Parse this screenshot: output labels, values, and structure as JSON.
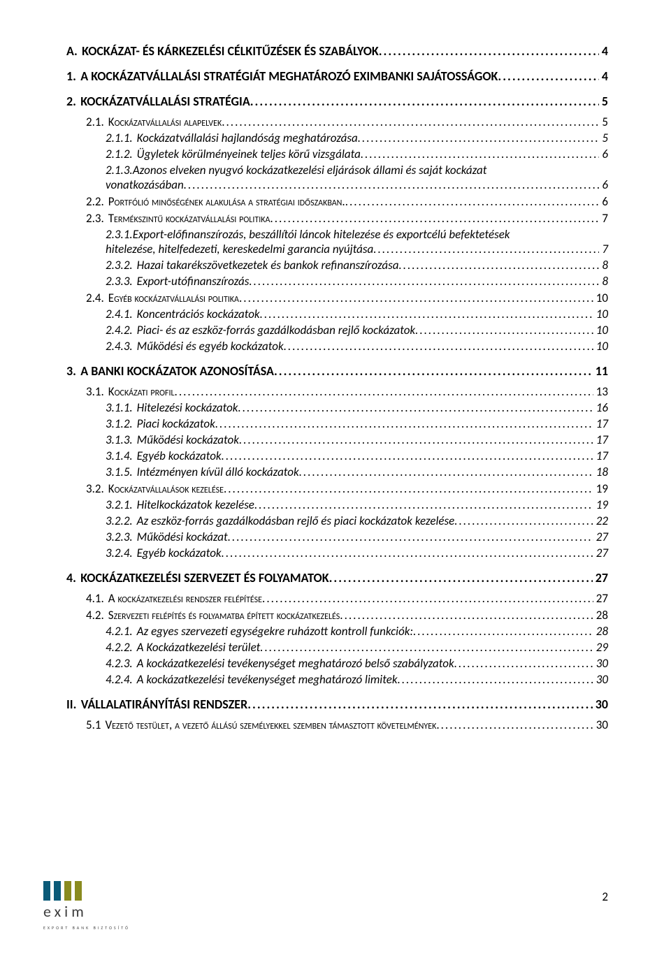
{
  "pageNumber": "2",
  "logo": {
    "word": "exim",
    "tag": "EXPORT   BANK   BIZTOSÍTÓ",
    "bar_colors": [
      "#0a5a78",
      "#0a5a78",
      "#8a8b1f",
      "#8a8b1f"
    ],
    "word_color": "#3c3c3c"
  },
  "toc": [
    {
      "lvl": 0,
      "num": "A.",
      "title": "KOCKÁZAT- ÉS KÁRKEZELÉSI CÉLKITŰZÉSEK ÉS SZABÁLYOK",
      "page": "4"
    },
    {
      "lvl": 0,
      "num": "1.",
      "title": "A KOCKÁZATVÁLLALÁSI STRATÉGIÁT MEGHATÁROZÓ EXIMBANKI SAJÁTOSSÁGOK",
      "page": "4"
    },
    {
      "lvl": 0,
      "num": "2.",
      "title": "KOCKÁZATVÁLLALÁSI STRATÉGIA",
      "page": "5"
    },
    {
      "lvl": 1,
      "num": "2.1.",
      "title": "Kockázatvállalási alapelvek",
      "page": "5"
    },
    {
      "lvl": 2,
      "num": "2.1.1.",
      "title": "Kockázatvállalási hajlandóság meghatározása",
      "page": "5"
    },
    {
      "lvl": 2,
      "num": "2.1.2.",
      "title": "Ügyletek körülményeinek teljes körű vizsgálata",
      "page": "6"
    },
    {
      "lvl": 2,
      "num": "2.1.3.",
      "title_line1": "Azonos elveken nyugvó kockázatkezelési eljárások állami és saját kockázat",
      "title_line2": "vonatkozásában",
      "page": "6",
      "wrap": true
    },
    {
      "lvl": 1,
      "num": "2.2.",
      "title": "Portfólió minőségének alakulása a stratégiai időszakban.",
      "page": "6"
    },
    {
      "lvl": 1,
      "num": "2.3.",
      "title": "Termékszintű kockázatvállalási politika",
      "page": "7"
    },
    {
      "lvl": 2,
      "num": "2.3.1.",
      "title_line1": "Export-előfinanszírozás, beszállítói láncok hitelezése és exportcélú befektetések",
      "title_line2": "hitelezése, hitelfedezeti, kereskedelmi garancia nyújtása",
      "page": "7",
      "wrap": true
    },
    {
      "lvl": 2,
      "num": "2.3.2.",
      "title": "Hazai takarékszövetkezetek és bankok refinanszírozása",
      "page": "8"
    },
    {
      "lvl": 2,
      "num": "2.3.3.",
      "title": "Export-utófinanszírozás",
      "page": "8"
    },
    {
      "lvl": 1,
      "num": "2.4.",
      "title": "Egyéb kockázatvállalási politika",
      "page": "10"
    },
    {
      "lvl": 2,
      "num": "2.4.1.",
      "title": "Koncentrációs kockázatok",
      "page": "10"
    },
    {
      "lvl": 2,
      "num": "2.4.2.",
      "title": "Piaci- és az eszköz-forrás gazdálkodásban rejlő kockázatok",
      "page": "10"
    },
    {
      "lvl": 2,
      "num": "2.4.3.",
      "title": "Működési és egyéb kockázatok",
      "page": "10"
    },
    {
      "lvl": 0,
      "num": "3.",
      "title": "A BANKI KOCKÁZATOK AZONOSÍTÁSA",
      "page": "11"
    },
    {
      "lvl": 1,
      "num": "3.1.",
      "title": "Kockázati profil",
      "page": "13"
    },
    {
      "lvl": 2,
      "num": "3.1.1.",
      "title": "Hitelezési kockázatok",
      "page": "16"
    },
    {
      "lvl": 2,
      "num": "3.1.2.",
      "title": "Piaci kockázatok",
      "page": "17"
    },
    {
      "lvl": 2,
      "num": "3.1.3.",
      "title": "Működési kockázatok",
      "page": "17"
    },
    {
      "lvl": 2,
      "num": "3.1.4.",
      "title": "Egyéb kockázatok",
      "page": "17"
    },
    {
      "lvl": 2,
      "num": "3.1.5.",
      "title": "Intézményen kívül álló kockázatok",
      "page": "18"
    },
    {
      "lvl": 1,
      "num": "3.2.",
      "title": "Kockázatvállalások kezelése",
      "page": "19"
    },
    {
      "lvl": 2,
      "num": "3.2.1.",
      "title": "Hitelkockázatok kezelése",
      "page": "19"
    },
    {
      "lvl": 2,
      "num": "3.2.2.",
      "title": "Az eszköz-forrás gazdálkodásban rejlő és piaci kockázatok kezelése",
      "page": "22"
    },
    {
      "lvl": 2,
      "num": "3.2.3.",
      "title": "Működési kockázat",
      "page": "27"
    },
    {
      "lvl": 2,
      "num": "3.2.4.",
      "title": "Egyéb kockázatok",
      "page": "27"
    },
    {
      "lvl": 0,
      "num": "4.",
      "title": "KOCKÁZATKEZELÉSI SZERVEZET ÉS FOLYAMATOK",
      "page": "27"
    },
    {
      "lvl": 1,
      "num": "4.1.",
      "title": "A kockázatkezelési rendszer felépítése",
      "page": "27"
    },
    {
      "lvl": 1,
      "num": "4.2.",
      "title": "Szervezeti felépítés és folyamatba épített kockázatkezelés",
      "page": "28"
    },
    {
      "lvl": 2,
      "num": "4.2.1.",
      "title": "Az egyes szervezeti egységekre ruházott kontroll funkciók:",
      "page": "28"
    },
    {
      "lvl": 2,
      "num": "4.2.2.",
      "title": "A Kockázatkezelési terület",
      "page": "29"
    },
    {
      "lvl": 2,
      "num": "4.2.3.",
      "title": "A kockázatkezelési tevékenységet meghatározó belső szabályzatok",
      "page": "30"
    },
    {
      "lvl": 2,
      "num": "4.2.4.",
      "title": "A kockázatkezelési tevékenységet meghatározó limitek",
      "page": "30"
    },
    {
      "lvl": 0,
      "num": "II.",
      "title": "VÁLLALATIRÁNYÍTÁSI RENDSZER",
      "page": "30"
    },
    {
      "lvl": 1,
      "num": "5.1",
      "title": "Vezető testület, a vezető állású személyekkel szemben támasztott követelmények",
      "page": "30"
    }
  ]
}
